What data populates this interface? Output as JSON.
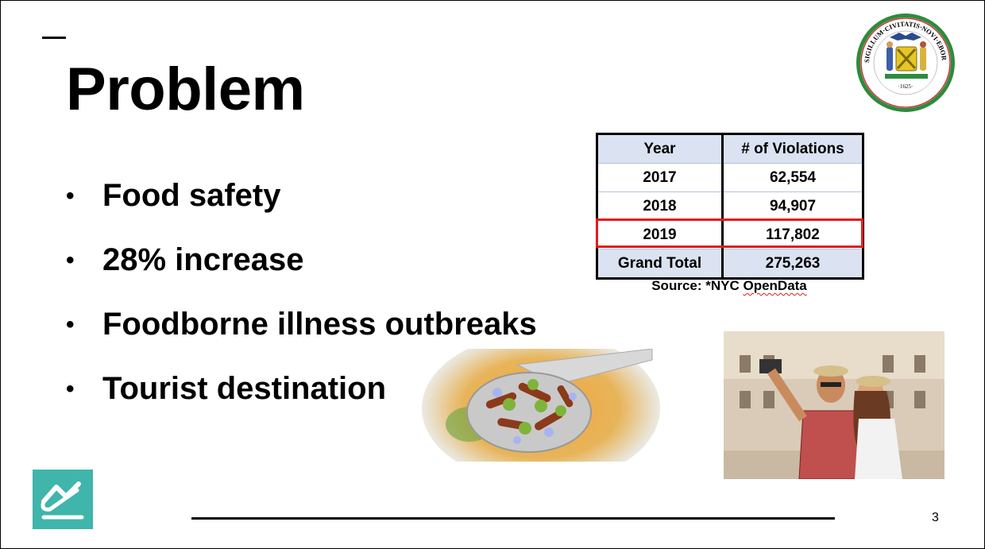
{
  "slide": {
    "title": "Problem",
    "bullets": [
      "Food safety",
      "28% increase",
      "Foodborne illness outbreaks",
      "Tourist destination"
    ],
    "bullet_symbol": "•",
    "page_number": "3"
  },
  "table": {
    "headers": [
      "Year",
      "# of Violations"
    ],
    "rows": [
      {
        "year": "2017",
        "violations": "62,554"
      },
      {
        "year": "2018",
        "violations": "94,907"
      },
      {
        "year": "2019",
        "violations": "117,802"
      }
    ],
    "total": {
      "label": "Grand Total",
      "violations": "275,263"
    },
    "highlighted_year": "2019",
    "highlight_color": "#e31a1c",
    "header_fill": "#dbe2f1"
  },
  "source": {
    "prefix": "Source: *NYC ",
    "link_word": "OpenData"
  },
  "seal": {
    "text_year": "·1625·",
    "text_ring": "SIGILLUM·CIVITATIS·NOVI·EBORACI"
  },
  "colors": {
    "logo_teal": "#3fb5ab",
    "seal_green": "#2e8b3e",
    "seal_gold": "#e8c623"
  }
}
